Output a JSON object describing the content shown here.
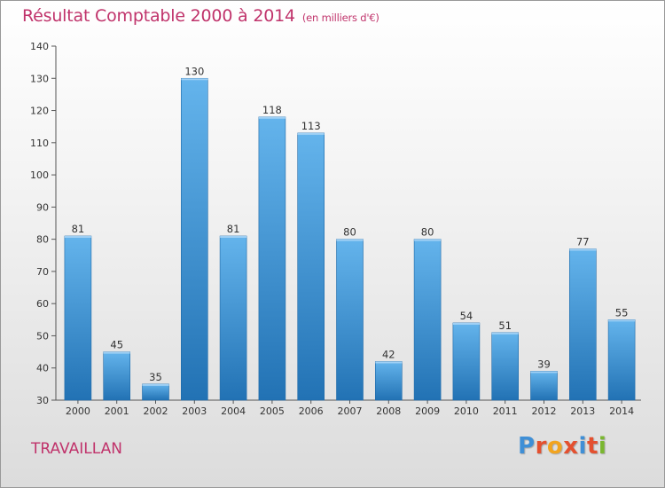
{
  "header": {
    "title": "Résultat Comptable 2000 à 2014",
    "subtitle": "(en milliers d'€)"
  },
  "footer": {
    "commune": "TRAVAILLAN",
    "logo_text": "Proxiti"
  },
  "colors": {
    "title": "#c0336b",
    "bar_light": "#64b4ec",
    "bar_dark": "#2272b4",
    "logo_letters": [
      "#3f8fd6",
      "#e4502f",
      "#f2a41f",
      "#e4502f",
      "#3f8fd6",
      "#e4502f",
      "#7ab72f"
    ]
  },
  "chart_data": {
    "type": "bar",
    "title": "Résultat Comptable 2000 à 2014",
    "subtitle": "(en milliers d'€)",
    "xlabel": "",
    "ylabel": "",
    "categories": [
      "2000",
      "2001",
      "2002",
      "2003",
      "2004",
      "2005",
      "2006",
      "2007",
      "2008",
      "2009",
      "2010",
      "2011",
      "2012",
      "2013",
      "2014"
    ],
    "values": [
      81,
      45,
      35,
      130,
      81,
      118,
      113,
      80,
      42,
      80,
      54,
      51,
      39,
      77,
      55
    ],
    "ylim": [
      30,
      140
    ],
    "yticks": [
      30,
      40,
      50,
      60,
      70,
      80,
      90,
      100,
      110,
      120,
      130,
      140
    ],
    "grid": false,
    "legend": "none"
  }
}
